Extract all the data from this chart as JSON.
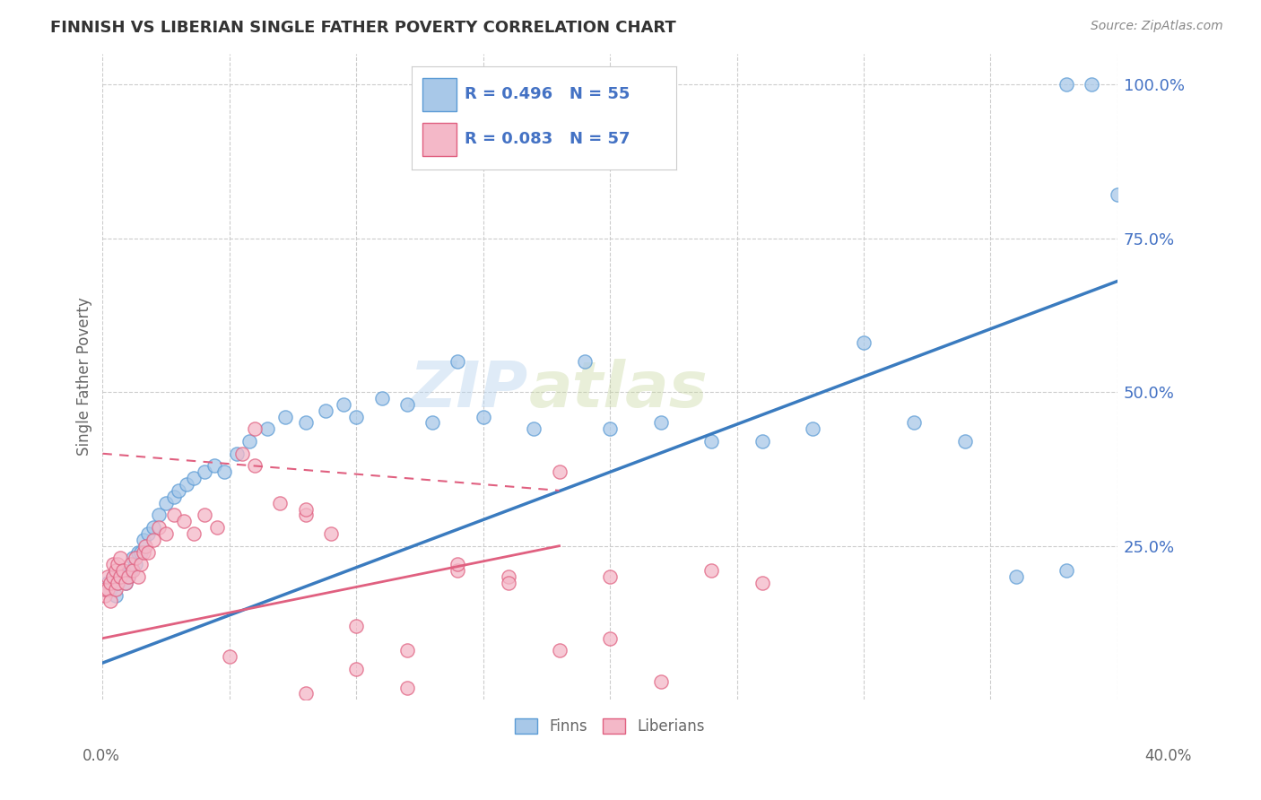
{
  "title": "FINNISH VS LIBERIAN SINGLE FATHER POVERTY CORRELATION CHART",
  "source": "Source: ZipAtlas.com",
  "ylabel": "Single Father Poverty",
  "watermark_zip": "ZIP",
  "watermark_atlas": "atlas",
  "legend_finn_r": "R = 0.496",
  "legend_finn_n": "N = 55",
  "legend_lib_r": "R = 0.083",
  "legend_lib_n": "N = 57",
  "finn_fill_color": "#a8c8e8",
  "finn_edge_color": "#5b9bd5",
  "lib_fill_color": "#f4b8c8",
  "lib_edge_color": "#e06080",
  "finn_line_color": "#3a7bbf",
  "lib_solid_color": "#e06080",
  "lib_dash_color": "#e06080",
  "right_tick_color": "#4472c4",
  "finns_x": [
    0.001,
    0.002,
    0.003,
    0.004,
    0.005,
    0.006,
    0.007,
    0.008,
    0.009,
    0.01,
    0.011,
    0.012,
    0.013,
    0.014,
    0.015,
    0.016,
    0.018,
    0.02,
    0.022,
    0.025,
    0.028,
    0.03,
    0.033,
    0.036,
    0.04,
    0.044,
    0.048,
    0.053,
    0.058,
    0.065,
    0.072,
    0.08,
    0.088,
    0.095,
    0.1,
    0.11,
    0.12,
    0.13,
    0.14,
    0.15,
    0.17,
    0.19,
    0.2,
    0.22,
    0.24,
    0.26,
    0.28,
    0.3,
    0.32,
    0.34,
    0.36,
    0.38,
    0.38,
    0.39,
    0.4
  ],
  "finns_y": [
    0.18,
    0.19,
    0.18,
    0.2,
    0.17,
    0.19,
    0.2,
    0.21,
    0.19,
    0.2,
    0.21,
    0.23,
    0.22,
    0.24,
    0.24,
    0.26,
    0.27,
    0.28,
    0.3,
    0.32,
    0.33,
    0.34,
    0.35,
    0.36,
    0.37,
    0.38,
    0.37,
    0.4,
    0.42,
    0.44,
    0.46,
    0.45,
    0.47,
    0.48,
    0.46,
    0.49,
    0.48,
    0.45,
    0.55,
    0.46,
    0.44,
    0.55,
    0.44,
    0.45,
    0.42,
    0.42,
    0.44,
    0.58,
    0.45,
    0.42,
    0.2,
    0.21,
    1.0,
    1.0,
    0.82
  ],
  "liberians_x": [
    0.001,
    0.001,
    0.002,
    0.002,
    0.003,
    0.003,
    0.004,
    0.004,
    0.005,
    0.005,
    0.006,
    0.006,
    0.007,
    0.007,
    0.008,
    0.009,
    0.01,
    0.011,
    0.012,
    0.013,
    0.014,
    0.015,
    0.016,
    0.017,
    0.018,
    0.02,
    0.022,
    0.025,
    0.028,
    0.032,
    0.036,
    0.04,
    0.045,
    0.05,
    0.055,
    0.06,
    0.07,
    0.08,
    0.09,
    0.1,
    0.12,
    0.14,
    0.16,
    0.18,
    0.2,
    0.06,
    0.08,
    0.1,
    0.12,
    0.14,
    0.16,
    0.18,
    0.2,
    0.22,
    0.24,
    0.26,
    0.08
  ],
  "liberians_y": [
    0.17,
    0.18,
    0.18,
    0.2,
    0.16,
    0.19,
    0.2,
    0.22,
    0.18,
    0.21,
    0.19,
    0.22,
    0.2,
    0.23,
    0.21,
    0.19,
    0.2,
    0.22,
    0.21,
    0.23,
    0.2,
    0.22,
    0.24,
    0.25,
    0.24,
    0.26,
    0.28,
    0.27,
    0.3,
    0.29,
    0.27,
    0.3,
    0.28,
    0.07,
    0.4,
    0.44,
    0.32,
    0.3,
    0.27,
    0.05,
    0.02,
    0.21,
    0.2,
    0.37,
    0.2,
    0.38,
    0.31,
    0.12,
    0.08,
    0.22,
    0.19,
    0.08,
    0.1,
    0.03,
    0.21,
    0.19,
    0.01
  ],
  "xlim": [
    0.0,
    0.4
  ],
  "ylim": [
    0.0,
    1.05
  ],
  "finn_trend": [
    0.0,
    0.4,
    0.06,
    0.68
  ],
  "lib_solid_trend": [
    0.0,
    0.18,
    0.1,
    0.25
  ],
  "lib_dash_trend": [
    0.0,
    0.18,
    0.4,
    0.34
  ]
}
